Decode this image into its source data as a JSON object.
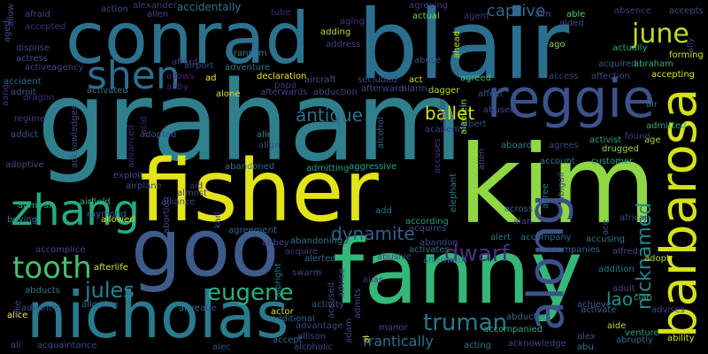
{
  "words": [
    {
      "text": "graham",
      "color": "#2f7f8d"
    },
    {
      "text": "fisher",
      "color": "#e2e418"
    },
    {
      "text": "kim",
      "color": "#8fd744"
    },
    {
      "text": "fanny",
      "color": "#35b779"
    },
    {
      "text": "blair",
      "color": "#2b6f8e"
    },
    {
      "text": "conrad",
      "color": "#2c728e"
    },
    {
      "text": "goo",
      "color": "#3e5b8b"
    },
    {
      "text": "nicholas",
      "color": "#2a7a8e"
    },
    {
      "text": "reggie",
      "color": "#3b528b"
    },
    {
      "text": "barbarosa",
      "color": "#d5e21a"
    },
    {
      "text": "zhang",
      "color": "#25ab82"
    },
    {
      "text": "shen",
      "color": "#2f6c8e"
    },
    {
      "text": "tooth",
      "color": "#45bf70"
    },
    {
      "text": "june",
      "color": "#b8de29"
    },
    {
      "text": "along",
      "color": "#3b518b"
    },
    {
      "text": "eugene",
      "color": "#2ab07f"
    },
    {
      "text": "truman",
      "color": "#2a788e"
    },
    {
      "text": "jules",
      "color": "#26818e"
    },
    {
      "text": "dwarf",
      "color": "#46307e"
    },
    {
      "text": "dynamite",
      "color": "#355f8d"
    },
    {
      "text": "antique",
      "color": "#2e6f8e"
    },
    {
      "text": "ballet",
      "color": "#d2e21b"
    },
    {
      "text": "captive",
      "color": "#31688e"
    },
    {
      "text": "nicknamed",
      "color": "#24868e"
    },
    {
      "text": "frantically",
      "color": "#2c738e"
    },
    {
      "text": "lao",
      "color": "#21918c"
    },
    {
      "text": "afraid",
      "color": "#414487"
    },
    {
      "text": "action",
      "color": "#3e4a89"
    },
    {
      "text": "alexander",
      "color": "#46337e"
    },
    {
      "text": "allen",
      "color": "#3f4788"
    },
    {
      "text": "accidentally",
      "color": "#2a788e"
    },
    {
      "text": "tube",
      "color": "#482677"
    },
    {
      "text": "agreeing",
      "color": "#433e85"
    },
    {
      "text": "able",
      "color": "#5ec962"
    },
    {
      "text": "absence",
      "color": "#443983"
    },
    {
      "text": "accepts",
      "color": "#3b528b"
    },
    {
      "text": "accepted",
      "color": "#472d7b"
    },
    {
      "text": "aging",
      "color": "#46337e"
    },
    {
      "text": "actual",
      "color": "#7ad151"
    },
    {
      "text": "agent",
      "color": "#463480"
    },
    {
      "text": "aim",
      "color": "#3b528b"
    },
    {
      "text": "aided",
      "color": "#3e4989"
    },
    {
      "text": "dispose",
      "color": "#414487"
    },
    {
      "text": "adding",
      "color": "#b5de2b"
    },
    {
      "text": "address",
      "color": "#424086"
    },
    {
      "text": "ahead",
      "color": "#bddf26"
    },
    {
      "text": "ago",
      "color": "#8fd744"
    },
    {
      "text": "actually",
      "color": "#22a884"
    },
    {
      "text": "forming",
      "color": "#d8e219"
    },
    {
      "text": "actress",
      "color": "#3b528b"
    },
    {
      "text": "ransom",
      "color": "#26828e"
    },
    {
      "text": "abuse",
      "color": "#3e4989"
    },
    {
      "text": "acquired",
      "color": "#38588c"
    },
    {
      "text": "abraham",
      "color": "#29af7f"
    },
    {
      "text": "active",
      "color": "#414487"
    },
    {
      "text": "agency",
      "color": "#3f4788"
    },
    {
      "text": "afford",
      "color": "#453781"
    },
    {
      "text": "airport",
      "color": "#3e4a89"
    },
    {
      "text": "adventure",
      "color": "#2a788e"
    },
    {
      "text": "aircraft",
      "color": "#3b528b"
    },
    {
      "text": "act",
      "color": "#d0e11c"
    },
    {
      "text": "agreed",
      "color": "#44bf70"
    },
    {
      "text": "access",
      "color": "#433e85"
    },
    {
      "text": "affection",
      "color": "#3e4a89"
    },
    {
      "text": "accepting",
      "color": "#dde318"
    },
    {
      "text": "accident",
      "color": "#31688e"
    },
    {
      "text": "allows",
      "color": "#482173"
    },
    {
      "text": "ad",
      "color": "#fde725"
    },
    {
      "text": "declaration",
      "color": "#eae51a"
    },
    {
      "text": "papa",
      "color": "#46337e"
    },
    {
      "text": "secluded",
      "color": "#3e4989"
    },
    {
      "text": "afterward",
      "color": "#3e4989"
    },
    {
      "text": "alarm",
      "color": "#3e4989"
    },
    {
      "text": "admit",
      "color": "#3b528b"
    },
    {
      "text": "abby",
      "color": "#482677"
    },
    {
      "text": "activated",
      "color": "#2a788e"
    },
    {
      "text": "alone",
      "color": "#dde318"
    },
    {
      "text": "afterwards",
      "color": "#433e85"
    },
    {
      "text": "abduction",
      "color": "#3e4a89"
    },
    {
      "text": "dagger",
      "color": "#b2dd2d"
    },
    {
      "text": "affect",
      "color": "#38588c"
    },
    {
      "text": "air",
      "color": "#2a788e"
    },
    {
      "text": "dragon",
      "color": "#472d7b"
    },
    {
      "text": "regime",
      "color": "#46337e"
    },
    {
      "text": "addict",
      "color": "#3b528b"
    },
    {
      "text": "admitted",
      "color": "#29af7f"
    },
    {
      "text": "adopted",
      "color": "#3b528b"
    },
    {
      "text": "alley",
      "color": "#24868e"
    },
    {
      "text": "align",
      "color": "#3e4989"
    },
    {
      "text": "academy",
      "color": "#414487"
    },
    {
      "text": "albert",
      "color": "#3e4989"
    },
    {
      "text": "aboard",
      "color": "#26828e"
    },
    {
      "text": "agrees",
      "color": "#414487"
    },
    {
      "text": "activist",
      "color": "#22a884"
    },
    {
      "text": "age",
      "color": "#a0da39"
    },
    {
      "text": "drugged",
      "color": "#8fd744"
    },
    {
      "text": "adoptive",
      "color": "#3e4a89"
    },
    {
      "text": "abandoned",
      "color": "#2d708e"
    },
    {
      "text": "admitting",
      "color": "#20a386"
    },
    {
      "text": "aggressive",
      "color": "#22a884"
    },
    {
      "text": "account",
      "color": "#2a788e"
    },
    {
      "text": "customer",
      "color": "#20a386"
    },
    {
      "text": "airplane",
      "color": "#3e4989"
    },
    {
      "text": "exploit",
      "color": "#3e4a89"
    },
    {
      "text": "aid",
      "color": "#46337e"
    },
    {
      "text": "alliance",
      "color": "#3e4a89"
    },
    {
      "text": "agreement",
      "color": "#31688e"
    },
    {
      "text": "add",
      "color": "#2a788e"
    },
    {
      "text": "agree",
      "color": "#2a788e"
    },
    {
      "text": "admiral",
      "color": "#22a884"
    },
    {
      "text": "airfield",
      "color": "#35b779"
    },
    {
      "text": "abbey",
      "color": "#3e4989"
    },
    {
      "text": "abandoning",
      "color": "#2a788e"
    },
    {
      "text": "according",
      "color": "#1f9e89"
    },
    {
      "text": "acquires",
      "color": "#3e4989"
    },
    {
      "text": "across",
      "color": "#31688e"
    },
    {
      "text": "alan",
      "color": "#3e4989"
    },
    {
      "text": "african",
      "color": "#3e4989"
    },
    {
      "text": "buying",
      "color": "#2a788e"
    },
    {
      "text": "raymond",
      "color": "#31688e"
    },
    {
      "text": "allowed",
      "color": "#d2e21b"
    },
    {
      "text": "alert",
      "color": "#2a788e"
    },
    {
      "text": "accompany",
      "color": "#31688e"
    },
    {
      "text": "accusing",
      "color": "#2a788e"
    },
    {
      "text": "accomplice",
      "color": "#3e4989"
    },
    {
      "text": "acquire",
      "color": "#443983"
    },
    {
      "text": "abandon",
      "color": "#3e4a89"
    },
    {
      "text": "activates",
      "color": "#2a788e"
    },
    {
      "text": "accompanies",
      "color": "#31688e"
    },
    {
      "text": "alfred",
      "color": "#3e4989"
    },
    {
      "text": "adopt",
      "color": "#b2dd2d"
    },
    {
      "text": "abusive",
      "color": "#3e4989"
    },
    {
      "text": "alerted",
      "color": "#31688e"
    },
    {
      "text": "afterlife",
      "color": "#d8e219"
    },
    {
      "text": "aftermath",
      "color": "#2a788e"
    },
    {
      "text": "addition",
      "color": "#2a788e"
    },
    {
      "text": "abducts",
      "color": "#2a788e"
    },
    {
      "text": "swarm",
      "color": "#3e4989"
    },
    {
      "text": "alias",
      "color": "#46337e"
    },
    {
      "text": "adult",
      "color": "#3e4989"
    },
    {
      "text": "clan",
      "color": "#29af7f"
    },
    {
      "text": "alice",
      "color": "#fde725"
    },
    {
      "text": "advance",
      "color": "#3e4989"
    },
    {
      "text": "allowing",
      "color": "#31688e"
    },
    {
      "text": "activity",
      "color": "#38588c"
    },
    {
      "text": "alive",
      "color": "#2a788e"
    },
    {
      "text": "abe",
      "color": "#3e4989"
    },
    {
      "text": "actor",
      "color": "#d2e21b"
    },
    {
      "text": "additional",
      "color": "#31688e"
    },
    {
      "text": "abducted",
      "color": "#31688e"
    },
    {
      "text": "achieve",
      "color": "#38588c"
    },
    {
      "text": "activate",
      "color": "#31688e"
    },
    {
      "text": "advises",
      "color": "#3e4989"
    },
    {
      "text": "acquaintance",
      "color": "#3e4989"
    },
    {
      "text": "advantage",
      "color": "#3e4989"
    },
    {
      "text": "allison",
      "color": "#3e4989"
    },
    {
      "text": "manor",
      "color": "#3e4989"
    },
    {
      "text": "accompanied",
      "color": "#29af7f"
    },
    {
      "text": "aide",
      "color": "#b2dd2d"
    },
    {
      "text": "venture",
      "color": "#20a386"
    },
    {
      "text": "ability",
      "color": "#d8e219"
    },
    {
      "text": "ali",
      "color": "#3e4989"
    },
    {
      "text": "accept",
      "color": "#31688e"
    },
    {
      "text": "alcoholic",
      "color": "#3e4989"
    },
    {
      "text": "acting",
      "color": "#2a788e"
    },
    {
      "text": "acknowledge",
      "color": "#3e4989"
    },
    {
      "text": "alex",
      "color": "#3e4989"
    },
    {
      "text": "abruptly",
      "color": "#31688e"
    },
    {
      "text": "alec",
      "color": "#3e4989"
    },
    {
      "text": "abu",
      "color": "#2a788e"
    },
    {
      "text": "aged",
      "color": "#3b528b"
    },
    {
      "text": "allow",
      "color": "#3b528b"
    },
    {
      "text": "aang",
      "color": "#46337e"
    },
    {
      "text": "acknowledges",
      "color": "#3e4989"
    },
    {
      "text": "advanced",
      "color": "#482677"
    },
    {
      "text": "acid",
      "color": "#482677"
    },
    {
      "text": "almost",
      "color": "#433e85"
    },
    {
      "text": "karl",
      "color": "#3e4989"
    },
    {
      "text": "abortion",
      "color": "#3e4989"
    },
    {
      "text": "albright",
      "color": "#2a788e"
    },
    {
      "text": "advice",
      "color": "#3e4989"
    },
    {
      "text": "accused",
      "color": "#3e4989"
    },
    {
      "text": "adam",
      "color": "#3e4989"
    },
    {
      "text": "al",
      "color": "#d8e219"
    },
    {
      "text": "admits",
      "color": "#3e4989"
    },
    {
      "text": "alcohol",
      "color": "#31688e"
    },
    {
      "text": "accuses",
      "color": "#46337e"
    },
    {
      "text": "aaron",
      "color": "#46337e"
    },
    {
      "text": "alamein",
      "color": "#8fd744"
    },
    {
      "text": "alien",
      "color": "#3e4989"
    },
    {
      "text": "elephant",
      "color": "#2a788e"
    },
    {
      "text": "abigail",
      "color": "#3e4989"
    },
    {
      "text": "ace",
      "color": "#3e4989"
    },
    {
      "text": "found",
      "color": "#443983"
    },
    {
      "text": "ally",
      "color": "#46337e"
    },
    {
      "text": "abused",
      "color": "#3e4989"
    },
    {
      "text": "allie",
      "color": "#3e4989"
    }
  ]
}
